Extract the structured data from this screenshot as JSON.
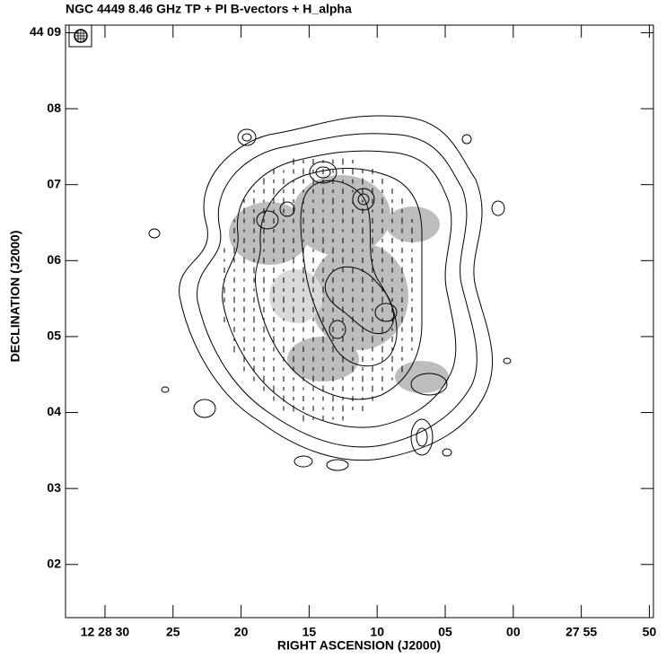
{
  "chart_data": {
    "type": "contour",
    "title": "NGC 4449 8.46 GHz TP + PI B-vectors + H_alpha",
    "xlabel": "RIGHT ASCENSION (J2000)",
    "ylabel": "DECLINATION (J2000)",
    "xlim": [
      32.9,
      -10.3
    ],
    "ylim": [
      1.3,
      9.1
    ],
    "xticks": [
      {
        "value": 30,
        "label": "12 28 30"
      },
      25,
      20,
      15,
      10,
      {
        "value": 5,
        "label": "05"
      },
      {
        "value": 0,
        "label": "00"
      },
      {
        "value": -5,
        "label": "27 55"
      },
      {
        "value": -10,
        "label": "50"
      }
    ],
    "yticks": [
      {
        "value": 9,
        "label": "44 09"
      },
      {
        "value": 8,
        "label": "08"
      },
      {
        "value": 7,
        "label": "07"
      },
      {
        "value": 6,
        "label": "06"
      },
      {
        "value": 5,
        "label": "05"
      },
      {
        "value": 4,
        "label": "04"
      },
      {
        "value": 3,
        "label": "03"
      },
      {
        "value": 2,
        "label": "02"
      }
    ]
  }
}
